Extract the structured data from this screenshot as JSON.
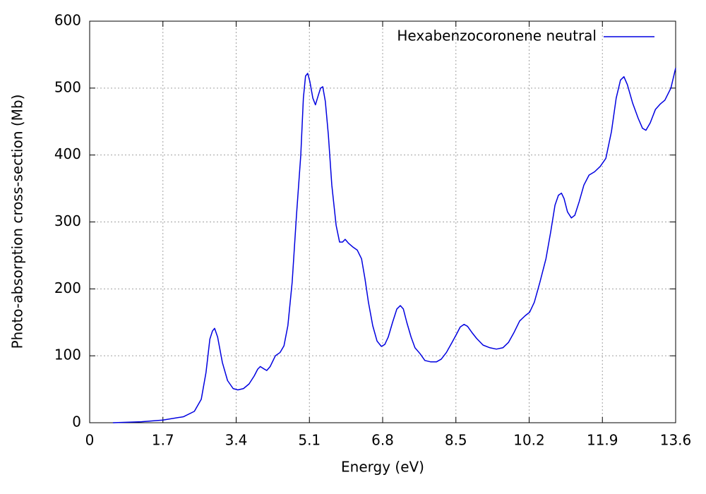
{
  "chart_data": {
    "type": "line",
    "xlabel": "Energy (eV)",
    "ylabel": "Photo-absorption cross-section (Mb)",
    "xlim": [
      0,
      13.6
    ],
    "xticks": [
      0,
      1.7,
      3.4,
      5.1,
      6.8,
      8.5,
      10.2,
      11.9,
      13.6
    ],
    "ylim": [
      0,
      600
    ],
    "yticks": [
      0,
      100,
      200,
      300,
      400,
      500,
      600
    ],
    "grid": true,
    "legend": "top right",
    "x": [
      0.54,
      1.2,
      1.7,
      2.18,
      2.43,
      2.59,
      2.7,
      2.79,
      2.85,
      2.9,
      2.97,
      3.08,
      3.2,
      3.33,
      3.44,
      3.57,
      3.7,
      3.82,
      3.9,
      3.96,
      4.03,
      4.11,
      4.19,
      4.31,
      4.42,
      4.51,
      4.6,
      4.7,
      4.8,
      4.9,
      4.96,
      5.01,
      5.06,
      5.11,
      5.18,
      5.24,
      5.31,
      5.36,
      5.41,
      5.47,
      5.54,
      5.62,
      5.72,
      5.8,
      5.87,
      5.93,
      6.01,
      6.1,
      6.21,
      6.31,
      6.39,
      6.47,
      6.57,
      6.67,
      6.77,
      6.85,
      6.93,
      7.03,
      7.13,
      7.21,
      7.28,
      7.36,
      7.46,
      7.55,
      7.67,
      7.78,
      7.91,
      8.05,
      8.16,
      8.28,
      8.41,
      8.52,
      8.6,
      8.69,
      8.77,
      8.87,
      8.98,
      9.13,
      9.29,
      9.44,
      9.59,
      9.72,
      9.85,
      9.98,
      10.11,
      10.21,
      10.32,
      10.45,
      10.59,
      10.7,
      10.8,
      10.88,
      10.95,
      11.01,
      11.09,
      11.18,
      11.26,
      11.36,
      11.47,
      11.59,
      11.72,
      11.85,
      11.98,
      12.11,
      12.22,
      12.32,
      12.4,
      12.48,
      12.6,
      12.73,
      12.83,
      12.91,
      13.01,
      13.13,
      13.24,
      13.35,
      13.49,
      13.6
    ],
    "series": [
      {
        "name": "Hexabenzocoronene neutral",
        "color": "#0000e0",
        "values": [
          0,
          1.5,
          4,
          9,
          17,
          35,
          75,
          125,
          137,
          141,
          128,
          90,
          63,
          51,
          49,
          51,
          58,
          70,
          80,
          84,
          81,
          78,
          84,
          100,
          105,
          115,
          145,
          210,
          310,
          400,
          485,
          518,
          522,
          510,
          485,
          475,
          490,
          500,
          502,
          480,
          430,
          355,
          295,
          270,
          270,
          274,
          268,
          263,
          258,
          245,
          215,
          180,
          145,
          122,
          114,
          117,
          128,
          150,
          170,
          175,
          170,
          150,
          128,
          112,
          103,
          93,
          91,
          91,
          95,
          105,
          120,
          133,
          143,
          147,
          144,
          135,
          126,
          116,
          112,
          110,
          112,
          120,
          135,
          152,
          160,
          165,
          180,
          210,
          245,
          285,
          325,
          340,
          343,
          335,
          315,
          306,
          310,
          330,
          355,
          370,
          375,
          383,
          395,
          435,
          485,
          512,
          517,
          505,
          478,
          455,
          440,
          437,
          448,
          468,
          476,
          482,
          500,
          530
        ]
      }
    ]
  }
}
